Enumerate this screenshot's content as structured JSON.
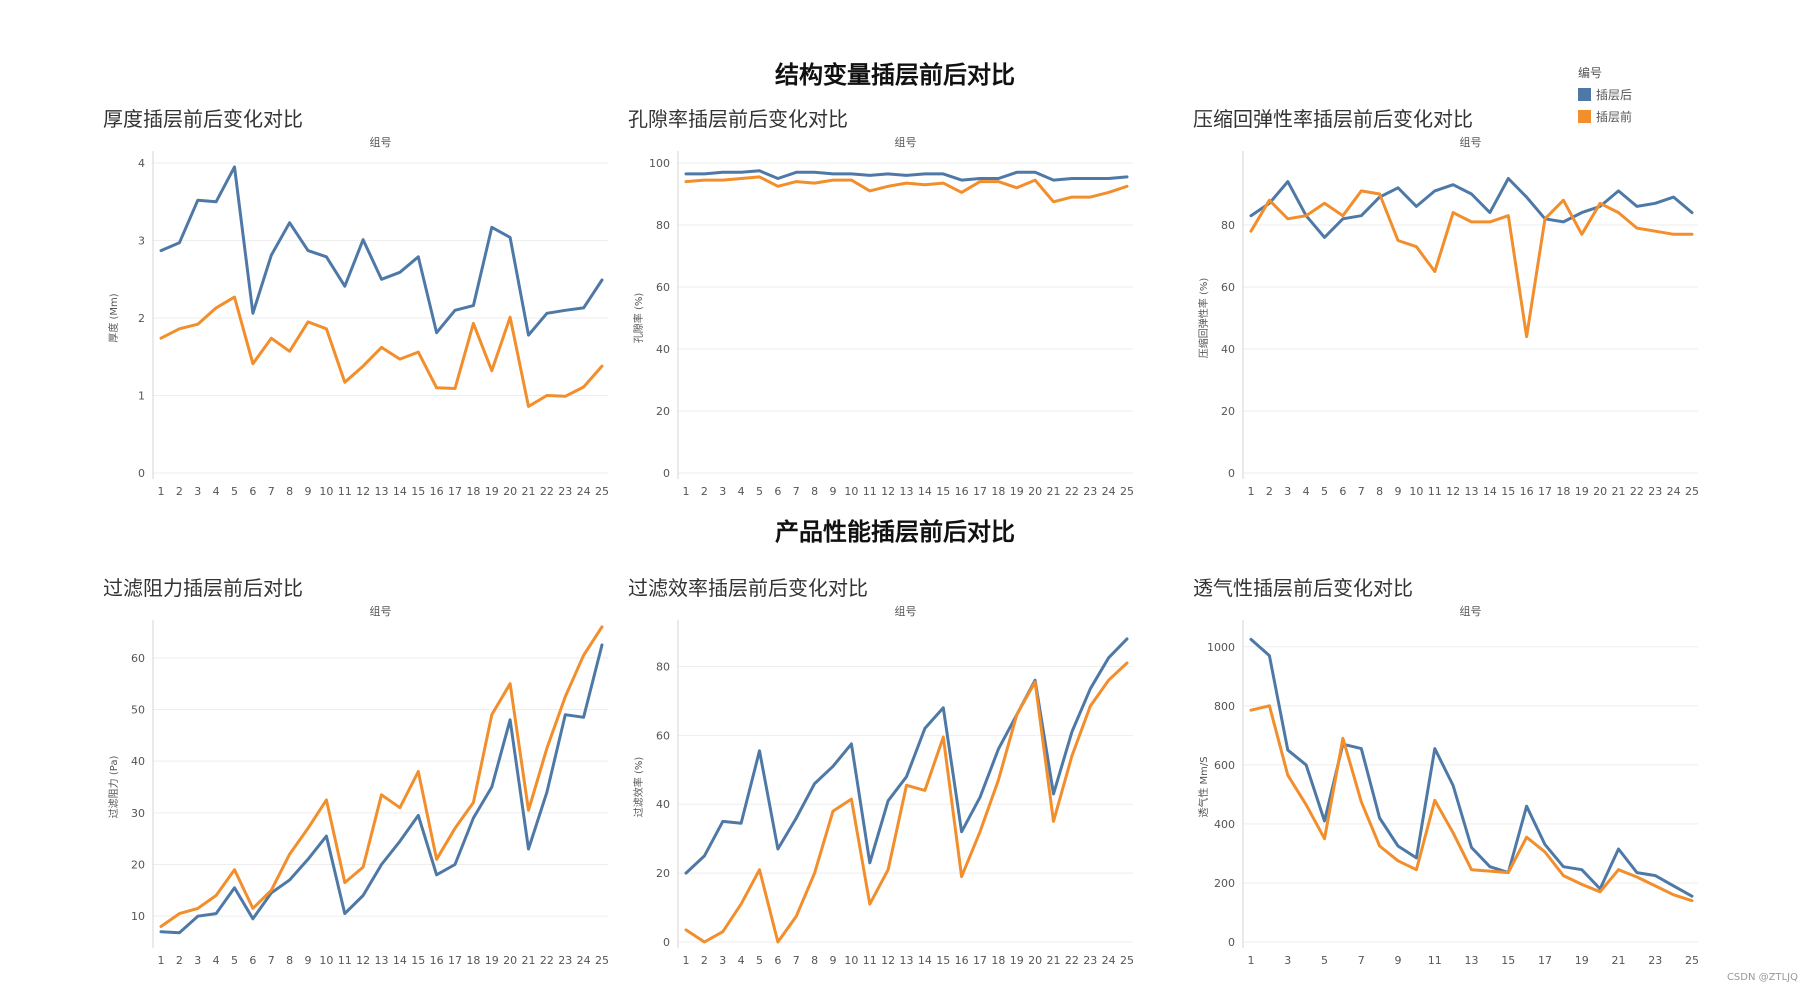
{
  "sections": [
    {
      "title": "结构变量插层前后对比"
    },
    {
      "title": "产品性能插层前后对比"
    }
  ],
  "legend": {
    "title": "编号",
    "items": [
      {
        "label": "插层后",
        "color": "#4e79a7"
      },
      {
        "label": "插层前",
        "color": "#f28e2b"
      }
    ]
  },
  "footer": "CSDN @ZTLJQ",
  "chart_data": [
    {
      "type": "line",
      "title": "厚度插层前后变化对比",
      "top_label": "组号",
      "ylabel": "厚度 (Mm)",
      "ylim": [
        0,
        4
      ],
      "yticks": [
        0,
        1,
        2,
        3,
        4
      ],
      "categories": [
        "1",
        "2",
        "3",
        "4",
        "5",
        "6",
        "7",
        "8",
        "9",
        "10",
        "11",
        "12",
        "13",
        "14",
        "15",
        "16",
        "17",
        "18",
        "19",
        "20",
        "21",
        "22",
        "23",
        "24",
        "25"
      ],
      "tick_labels": [
        "1",
        "2",
        "3",
        "4",
        "5",
        "6",
        "7",
        "8",
        "9",
        "10",
        "11",
        "12",
        "13",
        "14",
        "15",
        "16",
        "17",
        "18",
        "19",
        "20",
        "21",
        "22",
        "23",
        "24",
        "25"
      ],
      "series": [
        {
          "name": "插层后",
          "values": [
            2.87,
            2.97,
            3.52,
            3.5,
            3.95,
            2.06,
            2.81,
            3.23,
            2.87,
            2.79,
            2.41,
            3.01,
            2.5,
            2.59,
            2.79,
            1.81,
            2.1,
            2.16,
            3.17,
            3.04,
            1.78,
            2.06,
            2.1,
            2.13,
            2.49
          ]
        },
        {
          "name": "插层前",
          "values": [
            1.74,
            1.86,
            1.92,
            2.13,
            2.27,
            1.41,
            1.74,
            1.57,
            1.95,
            1.86,
            1.17,
            1.38,
            1.62,
            1.47,
            1.56,
            1.1,
            1.09,
            1.93,
            1.32,
            2.01,
            0.86,
            1.0,
            0.99,
            1.11,
            1.38
          ]
        }
      ]
    },
    {
      "type": "line",
      "title": "孔隙率插层前后变化对比",
      "top_label": "组号",
      "ylabel": "孔隙率 (%)",
      "ylim": [
        0,
        100
      ],
      "yticks": [
        0,
        20,
        40,
        60,
        80,
        100
      ],
      "categories": [
        "1",
        "2",
        "3",
        "4",
        "5",
        "6",
        "7",
        "8",
        "9",
        "10",
        "11",
        "12",
        "13",
        "14",
        "15",
        "16",
        "17",
        "18",
        "19",
        "20",
        "21",
        "22",
        "23",
        "24",
        "25"
      ],
      "tick_labels": [
        "1",
        "2",
        "3",
        "4",
        "5",
        "6",
        "7",
        "8",
        "9",
        "10",
        "11",
        "12",
        "13",
        "14",
        "15",
        "16",
        "17",
        "18",
        "19",
        "20",
        "21",
        "22",
        "23",
        "24",
        "25"
      ],
      "series": [
        {
          "name": "插层后",
          "values": [
            96.5,
            96.5,
            97,
            97,
            97.5,
            95,
            97,
            97,
            96.5,
            96.5,
            96,
            96.5,
            96,
            96.5,
            96.5,
            94.5,
            95,
            95,
            97,
            97,
            94.5,
            95,
            95,
            95,
            95.5
          ]
        },
        {
          "name": "插层前",
          "values": [
            94,
            94.5,
            94.5,
            95,
            95.5,
            92.5,
            94,
            93.5,
            94.5,
            94.5,
            91,
            92.5,
            93.5,
            93,
            93.5,
            90.5,
            94,
            94,
            92,
            94.5,
            87.5,
            89,
            89,
            90.5,
            92.5
          ]
        }
      ]
    },
    {
      "type": "line",
      "title": "压缩回弹性率插层前后变化对比",
      "top_label": "组号",
      "ylabel": "压缩回弹性率 (%)",
      "ylim": [
        0,
        100
      ],
      "yticks": [
        0,
        20,
        40,
        60,
        80
      ],
      "categories": [
        "1",
        "2",
        "3",
        "4",
        "5",
        "6",
        "7",
        "8",
        "9",
        "10",
        "11",
        "12",
        "13",
        "14",
        "15",
        "16",
        "17",
        "18",
        "19",
        "20",
        "21",
        "22",
        "23",
        "24",
        "25"
      ],
      "tick_labels": [
        "1",
        "2",
        "3",
        "4",
        "5",
        "6",
        "7",
        "8",
        "9",
        "10",
        "11",
        "12",
        "13",
        "14",
        "15",
        "16",
        "17",
        "18",
        "19",
        "20",
        "21",
        "22",
        "23",
        "24",
        "25"
      ],
      "series": [
        {
          "name": "插层后",
          "values": [
            83,
            87,
            94,
            83,
            76,
            82,
            83,
            89,
            92,
            86,
            91,
            93,
            90,
            84,
            95,
            89,
            82,
            81,
            84,
            86,
            91,
            86,
            87,
            89,
            84
          ]
        },
        {
          "name": "插层前",
          "values": [
            78,
            88,
            82,
            83,
            87,
            83,
            91,
            90,
            75,
            73,
            65,
            84,
            81,
            81,
            83,
            44,
            82,
            88,
            77,
            87,
            84,
            79,
            78,
            77,
            77
          ]
        }
      ]
    },
    {
      "type": "line",
      "title": "过滤阻力插层前后对比",
      "top_label": "组号",
      "ylabel": "过滤阻力 (Pa)",
      "ylim": [
        5,
        65
      ],
      "yticks": [
        10,
        20,
        30,
        40,
        50,
        60
      ],
      "categories": [
        "1",
        "2",
        "3",
        "4",
        "5",
        "6",
        "7",
        "8",
        "9",
        "10",
        "11",
        "12",
        "13",
        "14",
        "15",
        "16",
        "17",
        "18",
        "19",
        "20",
        "21",
        "22",
        "23",
        "24",
        "25"
      ],
      "tick_labels": [
        "1",
        "2",
        "3",
        "4",
        "5",
        "6",
        "7",
        "8",
        "9",
        "10",
        "11",
        "12",
        "13",
        "14",
        "15",
        "16",
        "17",
        "18",
        "19",
        "20",
        "21",
        "22",
        "23",
        "24",
        "25"
      ],
      "series": [
        {
          "name": "插层后",
          "values": [
            7,
            6.8,
            10,
            10.5,
            15.5,
            9.5,
            14.5,
            17,
            21,
            25.5,
            10.5,
            14,
            20,
            24.5,
            29.5,
            18,
            20,
            29,
            35,
            48,
            23,
            34,
            49,
            48.5,
            62.5
          ]
        },
        {
          "name": "插层前",
          "values": [
            8,
            10.5,
            11.5,
            14,
            19,
            11.5,
            15,
            22,
            27,
            32.5,
            16.5,
            19.5,
            33.5,
            31,
            38,
            21,
            27,
            32,
            49,
            55,
            30.5,
            42.5,
            52.5,
            60.5,
            66
          ]
        }
      ]
    },
    {
      "type": "line",
      "title": "过滤效率插层前后变化对比",
      "top_label": "组号",
      "ylabel": "过滤效率 (%)",
      "ylim": [
        0,
        90
      ],
      "yticks": [
        0,
        20,
        40,
        60,
        80
      ],
      "categories": [
        "1",
        "2",
        "3",
        "4",
        "5",
        "6",
        "7",
        "8",
        "9",
        "10",
        "11",
        "12",
        "13",
        "14",
        "15",
        "16",
        "17",
        "18",
        "19",
        "20",
        "21",
        "22",
        "23",
        "24",
        "25"
      ],
      "tick_labels": [
        "1",
        "2",
        "3",
        "4",
        "5",
        "6",
        "7",
        "8",
        "9",
        "10",
        "11",
        "12",
        "13",
        "14",
        "15",
        "16",
        "17",
        "18",
        "19",
        "20",
        "21",
        "22",
        "23",
        "24",
        "25"
      ],
      "series": [
        {
          "name": "插层后",
          "values": [
            20,
            25,
            35,
            34.5,
            55.5,
            27,
            36,
            46,
            51,
            57.5,
            23,
            41,
            48,
            62,
            68,
            32,
            42,
            56,
            66,
            76,
            43,
            61,
            73.5,
            82.5,
            88
          ]
        },
        {
          "name": "插层前",
          "values": [
            3.5,
            0,
            3,
            11,
            21,
            0,
            7.5,
            20,
            38,
            41.5,
            11,
            21,
            45.5,
            44,
            59.5,
            19,
            32,
            47,
            66,
            75.5,
            35,
            54,
            68.5,
            76,
            81
          ]
        }
      ]
    },
    {
      "type": "line",
      "title": "透气性插层前后变化对比",
      "top_label": "组号",
      "ylabel": "透气性 Mm/S",
      "ylim": [
        0,
        1050
      ],
      "yticks": [
        0,
        200,
        400,
        600,
        800,
        1000
      ],
      "categories": [
        "1",
        "2",
        "3",
        "4",
        "5",
        "6",
        "7",
        "8",
        "9",
        "10",
        "11",
        "12",
        "13",
        "14",
        "15",
        "16",
        "17",
        "18",
        "19",
        "20",
        "21",
        "22",
        "23",
        "24",
        "25"
      ],
      "tick_labels": [
        "1",
        "",
        "3",
        "",
        "5",
        "",
        "7",
        "",
        "9",
        "",
        "11",
        "",
        "13",
        "",
        "15",
        "",
        "17",
        "",
        "19",
        "",
        "21",
        "",
        "23",
        "",
        "25"
      ],
      "series": [
        {
          "name": "插层后",
          "values": [
            1025,
            970,
            650,
            600,
            410,
            670,
            655,
            420,
            325,
            285,
            655,
            530,
            320,
            255,
            235,
            460,
            330,
            255,
            245,
            180,
            315,
            235,
            225,
            190,
            155
          ]
        },
        {
          "name": "插层前",
          "values": [
            785,
            800,
            565,
            465,
            350,
            690,
            475,
            325,
            275,
            245,
            480,
            370,
            245,
            240,
            235,
            355,
            305,
            225,
            195,
            170,
            245,
            220,
            190,
            160,
            140
          ]
        }
      ]
    }
  ]
}
